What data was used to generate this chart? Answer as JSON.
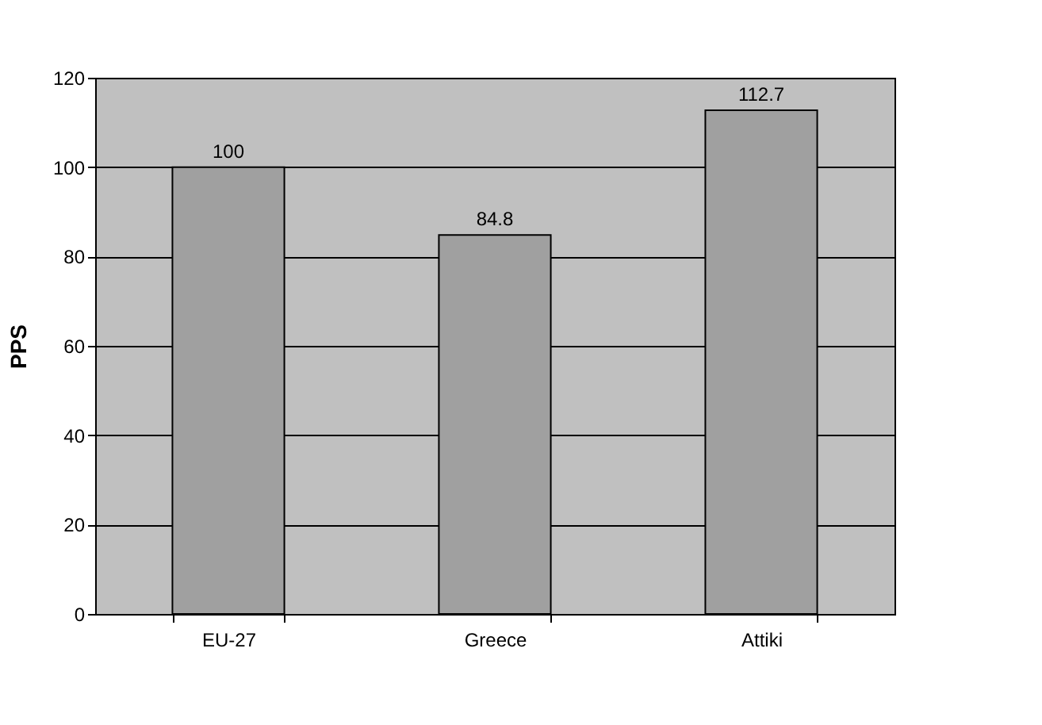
{
  "chart_data": {
    "type": "bar",
    "ylabel": "PPS",
    "categories": [
      "EU-27",
      "Greece",
      "Attiki"
    ],
    "values": [
      100,
      84.8,
      112.7
    ],
    "color": "#a0a0a0",
    "ylim": [
      0,
      120
    ],
    "yticks": [
      0,
      20,
      40,
      60,
      80,
      100,
      120
    ],
    "grid": "y",
    "data_labels": true
  }
}
